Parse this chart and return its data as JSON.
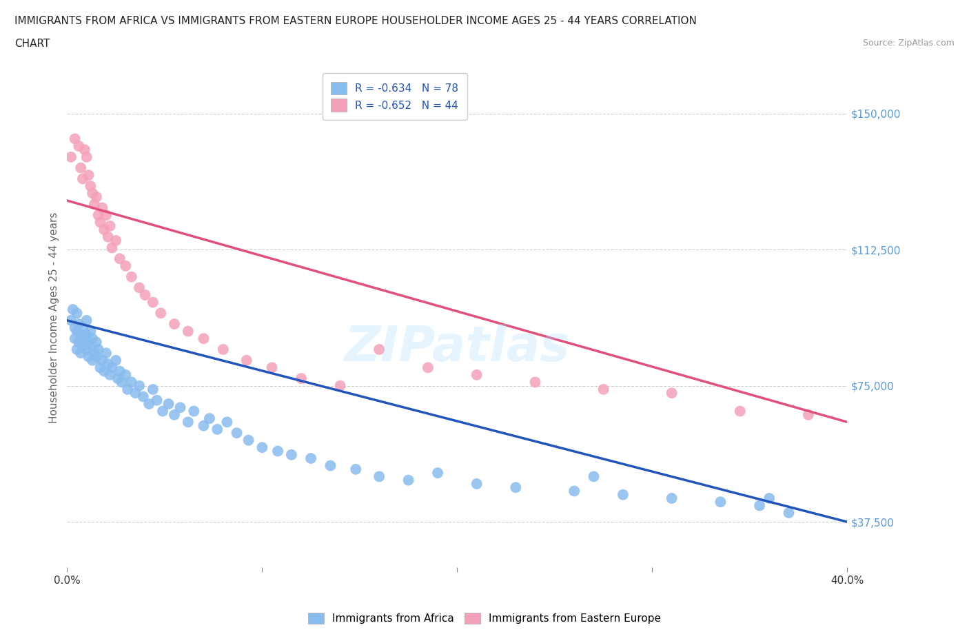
{
  "title_line1": "IMMIGRANTS FROM AFRICA VS IMMIGRANTS FROM EASTERN EUROPE HOUSEHOLDER INCOME AGES 25 - 44 YEARS CORRELATION",
  "title_line2": "CHART",
  "source": "Source: ZipAtlas.com",
  "ylabel": "Householder Income Ages 25 - 44 years",
  "xlim": [
    0.0,
    0.4
  ],
  "ylim": [
    25000,
    162500
  ],
  "yticks": [
    37500,
    75000,
    112500,
    150000
  ],
  "ytick_labels": [
    "$37,500",
    "$75,000",
    "$112,500",
    "$150,000"
  ],
  "xticks": [
    0.0,
    0.1,
    0.2,
    0.3,
    0.4
  ],
  "xtick_labels": [
    "0.0%",
    "",
    "",
    "",
    "40.0%"
  ],
  "legend_r_africa": "R = -0.634",
  "legend_n_africa": "N = 78",
  "legend_r_eastern": "R = -0.652",
  "legend_n_eastern": "N = 44",
  "color_africa": "#88BBEE",
  "color_eastern": "#F4A0B8",
  "line_color_africa": "#2255BB",
  "line_color_eastern": "#E0507A",
  "tick_color": "#5599DD",
  "watermark": "ZIPatlas",
  "africa_x": [
    0.002,
    0.003,
    0.004,
    0.004,
    0.005,
    0.005,
    0.005,
    0.006,
    0.006,
    0.007,
    0.007,
    0.008,
    0.008,
    0.009,
    0.01,
    0.01,
    0.01,
    0.011,
    0.011,
    0.012,
    0.012,
    0.013,
    0.013,
    0.014,
    0.015,
    0.015,
    0.016,
    0.017,
    0.018,
    0.019,
    0.02,
    0.021,
    0.022,
    0.023,
    0.025,
    0.026,
    0.027,
    0.028,
    0.03,
    0.031,
    0.033,
    0.035,
    0.037,
    0.039,
    0.042,
    0.044,
    0.046,
    0.049,
    0.052,
    0.055,
    0.058,
    0.062,
    0.065,
    0.07,
    0.073,
    0.077,
    0.082,
    0.087,
    0.093,
    0.1,
    0.108,
    0.115,
    0.125,
    0.135,
    0.148,
    0.16,
    0.175,
    0.19,
    0.21,
    0.23,
    0.26,
    0.285,
    0.31,
    0.335,
    0.355,
    0.36,
    0.37,
    0.27
  ],
  "africa_y": [
    93000,
    96000,
    91000,
    88000,
    95000,
    90000,
    85000,
    92000,
    87000,
    89000,
    84000,
    91000,
    86000,
    88000,
    93000,
    89000,
    85000,
    87000,
    83000,
    90000,
    86000,
    82000,
    88000,
    84000,
    87000,
    83000,
    85000,
    80000,
    82000,
    79000,
    84000,
    81000,
    78000,
    80000,
    82000,
    77000,
    79000,
    76000,
    78000,
    74000,
    76000,
    73000,
    75000,
    72000,
    70000,
    74000,
    71000,
    68000,
    70000,
    67000,
    69000,
    65000,
    68000,
    64000,
    66000,
    63000,
    65000,
    62000,
    60000,
    58000,
    57000,
    56000,
    55000,
    53000,
    52000,
    50000,
    49000,
    51000,
    48000,
    47000,
    46000,
    45000,
    44000,
    43000,
    42000,
    44000,
    40000,
    50000
  ],
  "eastern_x": [
    0.002,
    0.004,
    0.006,
    0.007,
    0.008,
    0.009,
    0.01,
    0.011,
    0.012,
    0.013,
    0.014,
    0.015,
    0.016,
    0.017,
    0.018,
    0.019,
    0.02,
    0.021,
    0.022,
    0.023,
    0.025,
    0.027,
    0.03,
    0.033,
    0.037,
    0.04,
    0.044,
    0.048,
    0.055,
    0.062,
    0.07,
    0.08,
    0.092,
    0.105,
    0.12,
    0.14,
    0.16,
    0.185,
    0.21,
    0.24,
    0.275,
    0.31,
    0.345,
    0.38
  ],
  "eastern_y": [
    138000,
    143000,
    141000,
    135000,
    132000,
    140000,
    138000,
    133000,
    130000,
    128000,
    125000,
    127000,
    122000,
    120000,
    124000,
    118000,
    122000,
    116000,
    119000,
    113000,
    115000,
    110000,
    108000,
    105000,
    102000,
    100000,
    98000,
    95000,
    92000,
    90000,
    88000,
    85000,
    82000,
    80000,
    77000,
    75000,
    85000,
    80000,
    78000,
    76000,
    74000,
    73000,
    68000,
    67000
  ]
}
